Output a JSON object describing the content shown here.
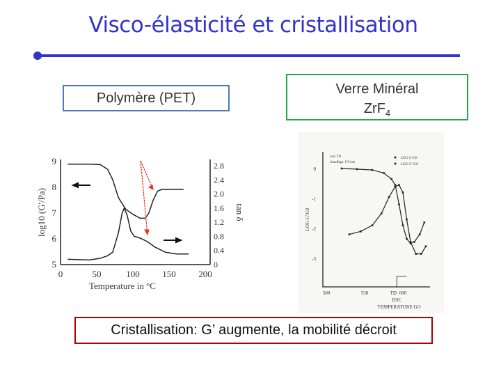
{
  "title": "Visco-élasticité et cristallisation",
  "labels": {
    "pet": "Polymère (PET)",
    "verre_line1": "Verre Minéral",
    "verre_formula": "ZrF",
    "verre_sub": "4",
    "conclusion": "Cristallisation: G’ augmente, la mobilité décroit"
  },
  "colors": {
    "title": "#3333cc",
    "pet_border": "#4a7ab8",
    "verre_border": "#22aa44",
    "conclusion_border": "#aa0000",
    "arrow": "#e83020"
  },
  "chart_data": [
    {
      "type": "line",
      "xlabel": "Temperature in °C",
      "ylabel": "log10 (G'/Pa)",
      "y2label": "tan δ",
      "xlim": [
        0,
        200
      ],
      "ylim": [
        5,
        9
      ],
      "y2lim": [
        0,
        2.9
      ],
      "xticks": [
        "0",
        "50",
        "100",
        "150",
        "200"
      ],
      "yticks": [
        "5",
        "6",
        "7",
        "8",
        "9"
      ],
      "y2ticks": [
        "0",
        "0.4",
        "0.8",
        "1.2",
        "1.6",
        "2.0",
        "2.4",
        "2.8"
      ],
      "series": [
        {
          "name": "log G'",
          "axis": "left",
          "x": [
            10,
            40,
            55,
            65,
            72,
            80,
            90,
            100,
            110,
            117,
            122,
            128,
            134,
            140,
            170
          ],
          "y": [
            8.9,
            8.9,
            8.88,
            8.7,
            8.3,
            7.6,
            7.15,
            6.95,
            6.8,
            6.8,
            7.0,
            7.5,
            7.85,
            7.92,
            7.92
          ]
        },
        {
          "name": "tan δ",
          "axis": "right",
          "x": [
            10,
            40,
            55,
            65,
            72,
            80,
            85,
            88,
            92,
            97,
            102,
            110,
            120,
            130,
            145,
            160,
            177
          ],
          "y": [
            0.15,
            0.13,
            0.18,
            0.25,
            0.35,
            0.9,
            1.45,
            1.6,
            1.4,
            0.95,
            0.8,
            0.75,
            0.65,
            0.5,
            0.35,
            0.3,
            0.3
          ]
        }
      ]
    },
    {
      "type": "line",
      "xlabel": "TEMPERATURE  GO",
      "ylabel": "LOG G'/G0",
      "xticks": [
        "500",
        "550",
        "600"
      ],
      "xtick_note": "TD",
      "dsc_label": "DSC",
      "yticks": [
        "0",
        "-1",
        "-2",
        "-3"
      ],
      "legend": [
        "LOG G'/G0",
        "LOG G''/G0"
      ],
      "annotation": [
        "vers TD",
        "chauffage 1°C/mn"
      ],
      "series": [
        {
          "name": "LOG G'/G0",
          "x": [
            520,
            540,
            560,
            575,
            585,
            590,
            595,
            600,
            605,
            610,
            615,
            622,
            628
          ],
          "y": [
            0,
            -0.02,
            -0.05,
            -0.15,
            -0.35,
            -0.55,
            -1.2,
            -1.9,
            -2.35,
            -2.5,
            -2.45,
            -2.2,
            -1.8
          ]
        },
        {
          "name": "LOG G''/G0",
          "x": [
            530,
            545,
            560,
            572,
            582,
            590,
            595,
            600,
            605,
            610,
            617,
            624,
            630
          ],
          "y": [
            -2.2,
            -2.1,
            -1.9,
            -1.5,
            -0.95,
            -0.6,
            -0.55,
            -0.8,
            -1.7,
            -2.45,
            -2.85,
            -2.85,
            -2.6
          ]
        }
      ]
    }
  ]
}
